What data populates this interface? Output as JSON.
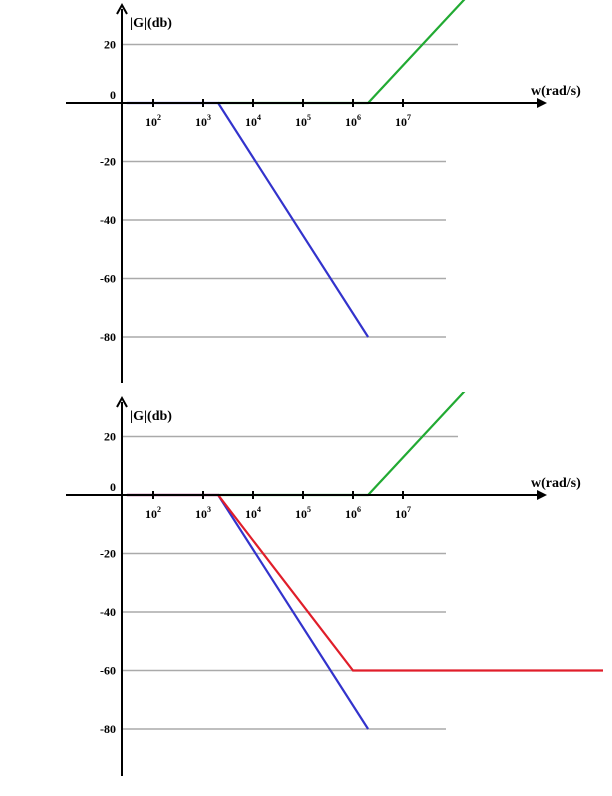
{
  "chart_data": [
    {
      "type": "line",
      "title": "",
      "ylabel": "|G|(db)",
      "xlabel": "w(rad/s)",
      "x_scale": "log",
      "x_ticks": [
        100,
        1000,
        10000,
        100000,
        1000000,
        10000000
      ],
      "x_tick_labels": [
        {
          "base": "10",
          "exp": "2"
        },
        {
          "base": "10",
          "exp": "3"
        },
        {
          "base": "10",
          "exp": "4"
        },
        {
          "base": "10",
          "exp": "5"
        },
        {
          "base": "10",
          "exp": "6"
        },
        {
          "base": "10",
          "exp": "7"
        }
      ],
      "y_ticks": [
        20,
        0,
        -20,
        -40,
        -60,
        -80
      ],
      "y_tick_labels": [
        "20",
        "0",
        "-20",
        "-40",
        "-60",
        "-80"
      ],
      "grid": true,
      "series": [
        {
          "color": "#3333cc",
          "points": [
            [
              30,
              0
            ],
            [
              2000,
              0
            ],
            [
              2000000,
              -80
            ]
          ]
        },
        {
          "color": "#22aa33",
          "points": [
            [
              2000,
              0
            ],
            [
              2000000,
              0
            ],
            [
              300000000,
              40
            ]
          ]
        }
      ]
    },
    {
      "type": "line",
      "title": "",
      "ylabel": "|G|(db)",
      "xlabel": "w(rad/s)",
      "x_scale": "log",
      "x_ticks": [
        100,
        1000,
        10000,
        100000,
        1000000,
        10000000
      ],
      "x_tick_labels": [
        {
          "base": "10",
          "exp": "2"
        },
        {
          "base": "10",
          "exp": "3"
        },
        {
          "base": "10",
          "exp": "4"
        },
        {
          "base": "10",
          "exp": "5"
        },
        {
          "base": "10",
          "exp": "6"
        },
        {
          "base": "10",
          "exp": "7"
        }
      ],
      "y_ticks": [
        20,
        0,
        -20,
        -40,
        -60,
        -80
      ],
      "y_tick_labels": [
        "20",
        "0",
        "-20",
        "-40",
        "-60",
        "-80"
      ],
      "grid": true,
      "series": [
        {
          "color": "#3333cc",
          "points": [
            [
              30,
              0
            ],
            [
              2000,
              0
            ],
            [
              2000000,
              -80
            ]
          ]
        },
        {
          "color": "#22aa33",
          "points": [
            [
              2000,
              0
            ],
            [
              2000000,
              0
            ],
            [
              300000000,
              40
            ]
          ]
        },
        {
          "color": "#e01e2a",
          "points": [
            [
              30,
              0
            ],
            [
              2000,
              0
            ],
            [
              1000000,
              -60
            ],
            [
              100000000000,
              -60
            ]
          ]
        }
      ]
    }
  ]
}
